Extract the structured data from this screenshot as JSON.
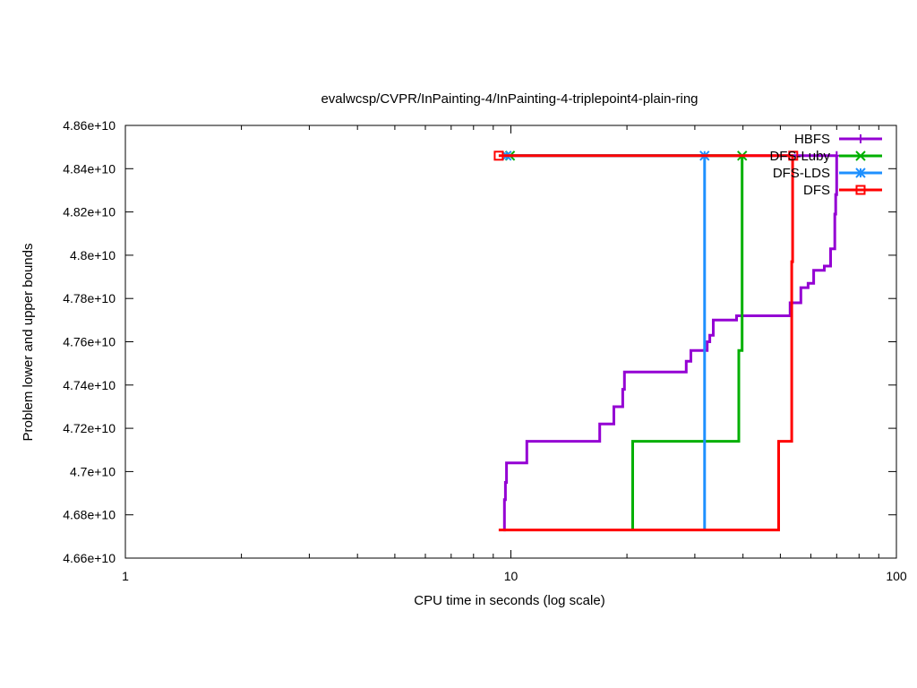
{
  "chart_data": {
    "type": "line",
    "title": "evalwcsp/CVPR/InPainting-4/InPainting-4-triplepoint4-plain-ring",
    "xlabel": "CPU time in seconds (log scale)",
    "ylabel": "Problem lower and upper bounds",
    "x_scale": "log",
    "xlim": [
      1,
      100
    ],
    "ylim": [
      46600000000,
      48600000000
    ],
    "x_ticks": [
      {
        "value": 1,
        "label": "1"
      },
      {
        "value": 10,
        "label": "10"
      },
      {
        "value": 100,
        "label": "100"
      }
    ],
    "y_ticks": [
      {
        "value": 46600000000,
        "label": "4.66e+10"
      },
      {
        "value": 46800000000,
        "label": "4.68e+10"
      },
      {
        "value": 47000000000,
        "label": "4.7e+10"
      },
      {
        "value": 47200000000,
        "label": "4.72e+10"
      },
      {
        "value": 47400000000,
        "label": "4.74e+10"
      },
      {
        "value": 47600000000,
        "label": "4.76e+10"
      },
      {
        "value": 47800000000,
        "label": "4.78e+10"
      },
      {
        "value": 48000000000,
        "label": "4.8e+10"
      },
      {
        "value": 48200000000,
        "label": "4.82e+10"
      },
      {
        "value": 48400000000,
        "label": "4.84e+10"
      },
      {
        "value": 48600000000,
        "label": "4.86e+10"
      }
    ],
    "grid": false,
    "legend_position": "top-right",
    "series": [
      {
        "name": "HBFS",
        "color": "#9400d3",
        "marker": "plus",
        "upper": [
          [
            9.6,
            48460000000
          ],
          [
            70,
            48460000000
          ]
        ],
        "upper_markers": [
          [
            70,
            48460000000
          ]
        ],
        "lower": [
          [
            9.56,
            46730000000
          ],
          [
            9.62,
            46870000000
          ],
          [
            9.68,
            46950000000
          ],
          [
            9.74,
            47040000000
          ],
          [
            11.0,
            47140000000
          ],
          [
            17.0,
            47220000000
          ],
          [
            18.5,
            47300000000
          ],
          [
            19.5,
            47380000000
          ],
          [
            19.7,
            47460000000
          ],
          [
            28.5,
            47510000000
          ],
          [
            29.3,
            47560000000
          ],
          [
            32.3,
            47600000000
          ],
          [
            32.8,
            47630000000
          ],
          [
            33.5,
            47700000000
          ],
          [
            38.5,
            47720000000
          ],
          [
            53.0,
            47780000000
          ],
          [
            56.5,
            47850000000
          ],
          [
            59.0,
            47870000000
          ],
          [
            61.0,
            47930000000
          ],
          [
            65.0,
            47950000000
          ],
          [
            67.5,
            48030000000
          ],
          [
            69.2,
            48190000000
          ],
          [
            69.6,
            48280000000
          ],
          [
            70.0,
            48460000000
          ]
        ]
      },
      {
        "name": "DFS-Luby",
        "color": "#00b000",
        "marker": "cross",
        "upper": [
          [
            9.95,
            48460000000
          ],
          [
            39.8,
            48460000000
          ]
        ],
        "upper_markers": [
          [
            9.95,
            48460000000
          ],
          [
            39.8,
            48460000000
          ]
        ],
        "lower": [
          [
            20.7,
            46730000000
          ],
          [
            20.7,
            47140000000
          ],
          [
            39.0,
            47140000000
          ],
          [
            39.0,
            47560000000
          ],
          [
            39.8,
            47560000000
          ],
          [
            39.8,
            48460000000
          ]
        ]
      },
      {
        "name": "DFS-LDS",
        "color": "#1e90ff",
        "marker": "star",
        "upper": [
          [
            9.75,
            48460000000
          ],
          [
            31.8,
            48460000000
          ]
        ],
        "upper_markers": [
          [
            9.75,
            48460000000
          ],
          [
            31.8,
            48460000000
          ]
        ],
        "lower": [
          [
            31.8,
            46730000000
          ],
          [
            31.8,
            48460000000
          ]
        ]
      },
      {
        "name": "DFS",
        "color": "#ff0000",
        "marker": "square",
        "upper": [
          [
            9.3,
            48460000000
          ],
          [
            54.0,
            48460000000
          ]
        ],
        "upper_markers": [
          [
            9.3,
            48460000000
          ],
          [
            54.0,
            48460000000
          ]
        ],
        "lower": [
          [
            9.3,
            46730000000
          ],
          [
            49.5,
            46730000000
          ],
          [
            49.5,
            47140000000
          ],
          [
            53.5,
            47140000000
          ],
          [
            53.5,
            47970000000
          ],
          [
            53.8,
            47970000000
          ],
          [
            53.8,
            48460000000
          ]
        ]
      }
    ]
  }
}
